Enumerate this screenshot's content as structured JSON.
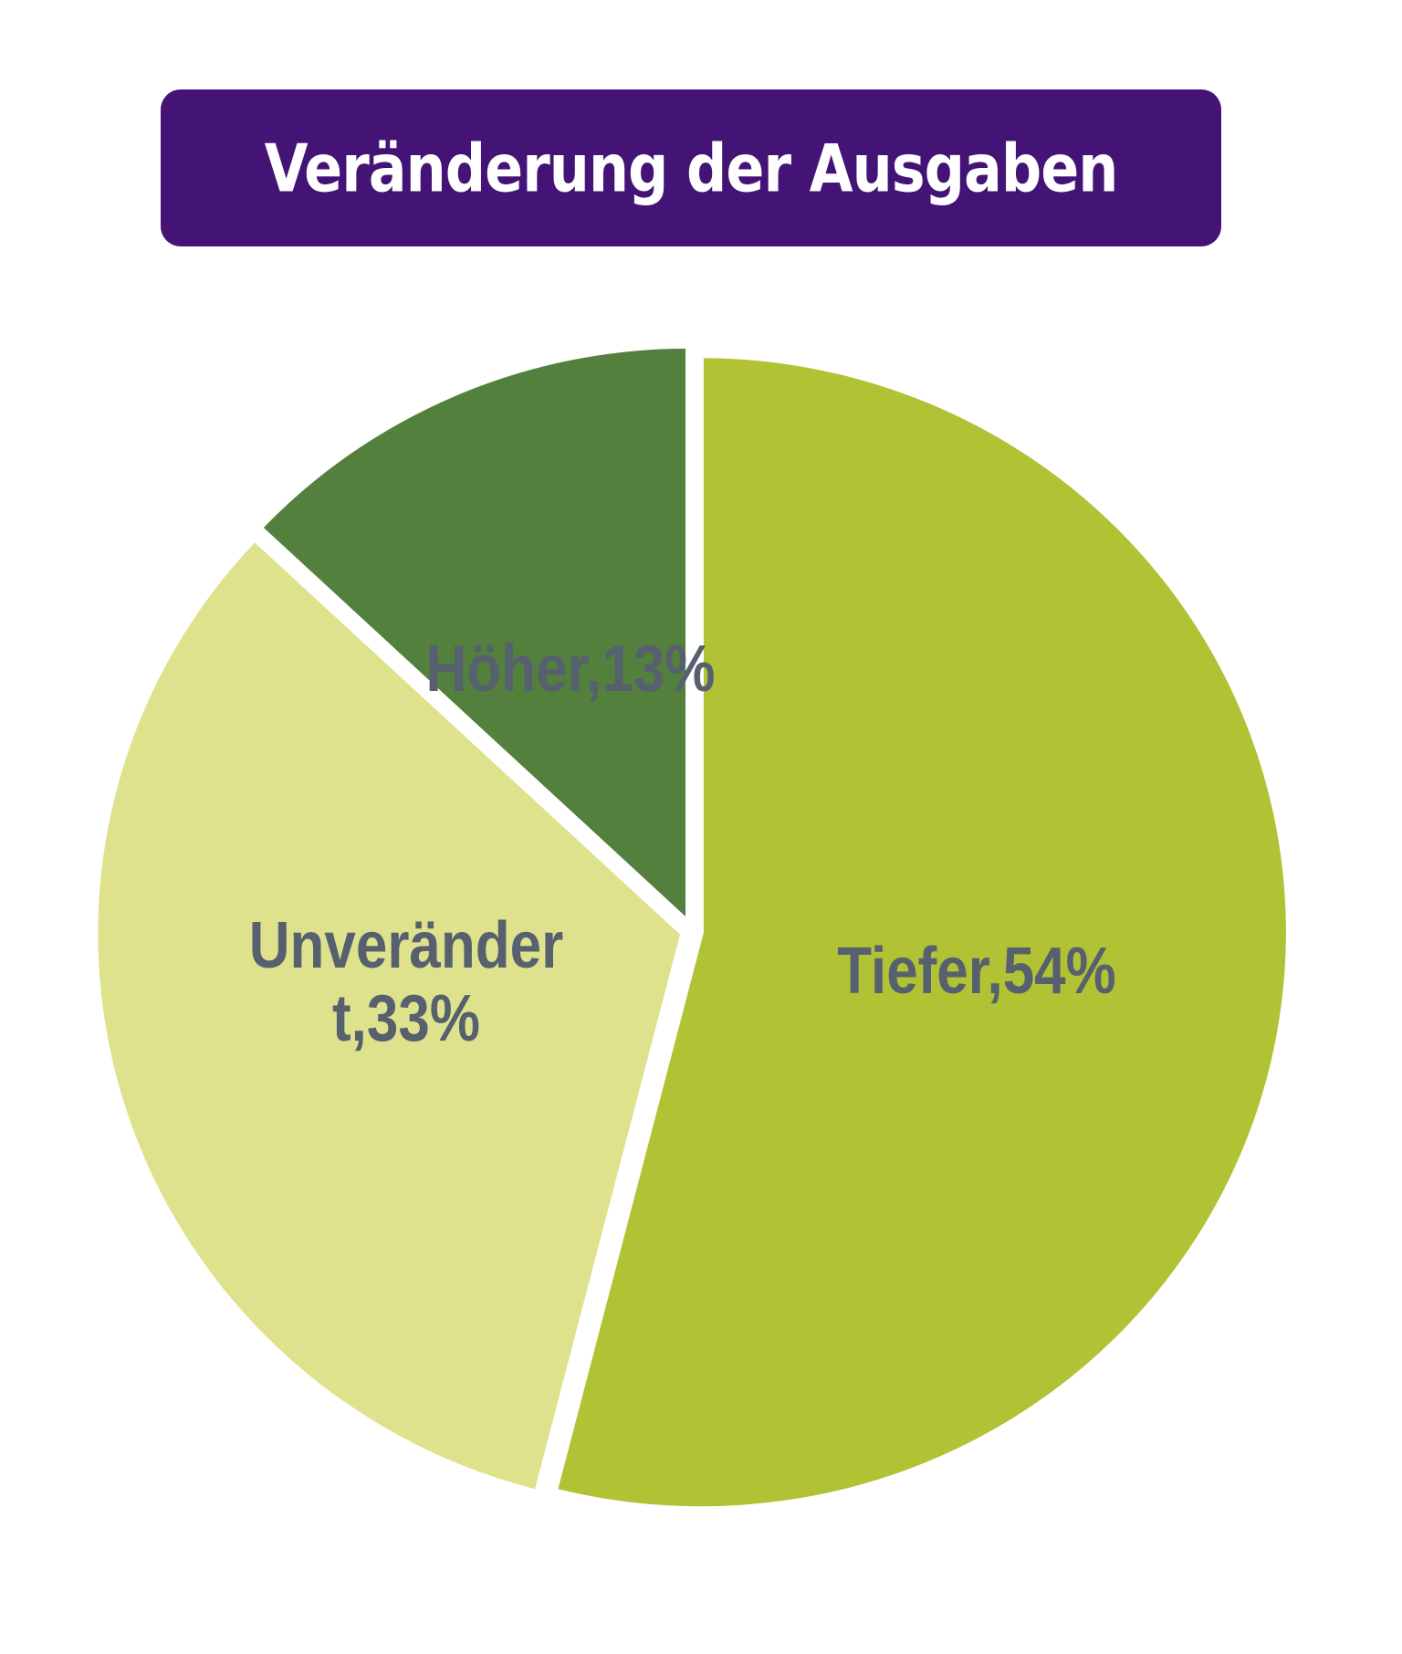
{
  "chart_data": {
    "type": "pie",
    "title": "Veränderung der Ausgaben",
    "slices": [
      {
        "name": "Tiefer",
        "value": 54,
        "label_lines": [
          "Tiefer,54%"
        ],
        "color": "#b1c234"
      },
      {
        "name": "Unverändert",
        "value": 33,
        "label_lines": [
          "Unveränder",
          "t,33%"
        ],
        "color": "#dfe28c"
      },
      {
        "name": "Höher",
        "value": 13,
        "label_lines": [
          "Höher,13%"
        ],
        "color": "#53803c"
      }
    ],
    "label_color": "#57606f",
    "title_bg": "#431476",
    "start_angle": "top",
    "direction": "clockwise"
  }
}
